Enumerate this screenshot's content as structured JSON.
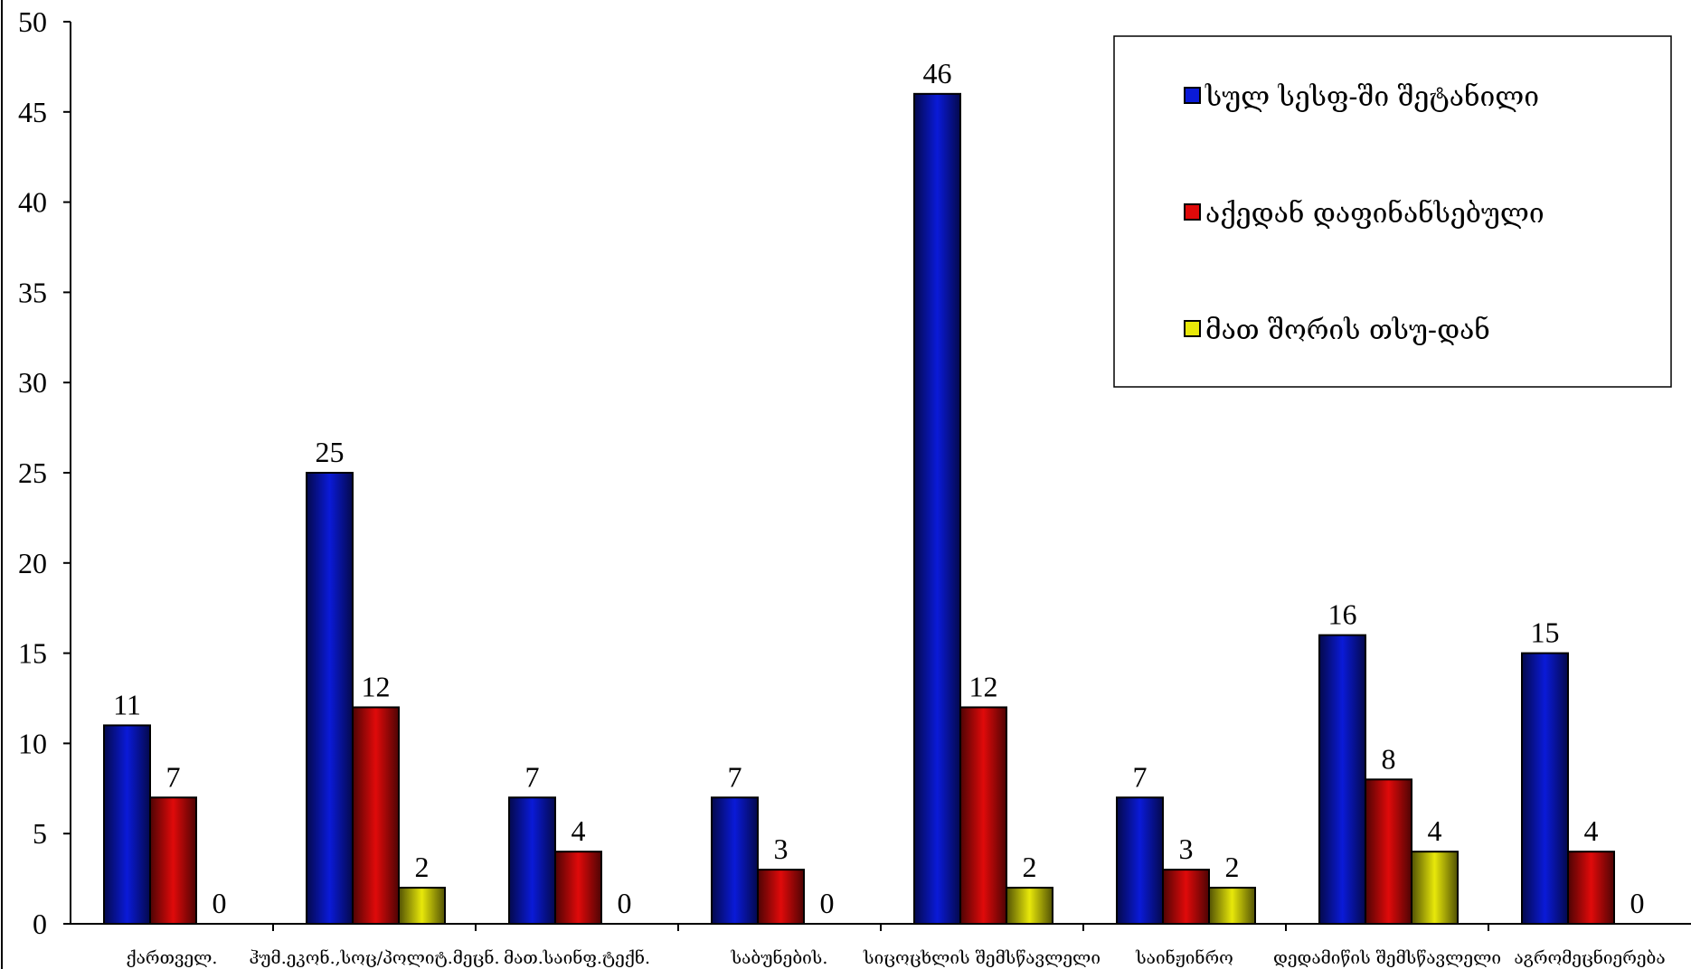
{
  "chart_data": {
    "type": "bar",
    "title": "",
    "xlabel": "",
    "ylabel": "",
    "ylim": [
      0,
      50
    ],
    "yticks": [
      0,
      5,
      10,
      15,
      20,
      25,
      30,
      35,
      40,
      45,
      50
    ],
    "grid": false,
    "legend_position": "top-right",
    "categories": [
      "ქართველ.",
      "ჰუმ.ეკონ.,სოც/პოლიტ.მეცნ.",
      "მათ.საინფ.ტექნ.",
      "საბუნების.",
      "სიცოცხლის შემსწავლელი",
      "საინჟინრო",
      "დედამიწის შემსწავლელი",
      "აგრომეცნიერება"
    ],
    "series": [
      {
        "name": "სულ სესფ-ში შეტანილი",
        "color": "#0a1ad8",
        "values": [
          11,
          25,
          7,
          7,
          46,
          7,
          16,
          15
        ]
      },
      {
        "name": "აქედან დაფინანსებული",
        "color": "#e00a0a",
        "values": [
          7,
          12,
          4,
          3,
          12,
          3,
          8,
          4
        ]
      },
      {
        "name": "მათ შორის თსუ-დან",
        "color": "#e8e80a",
        "values": [
          0,
          2,
          0,
          0,
          2,
          2,
          4,
          0
        ]
      }
    ]
  }
}
